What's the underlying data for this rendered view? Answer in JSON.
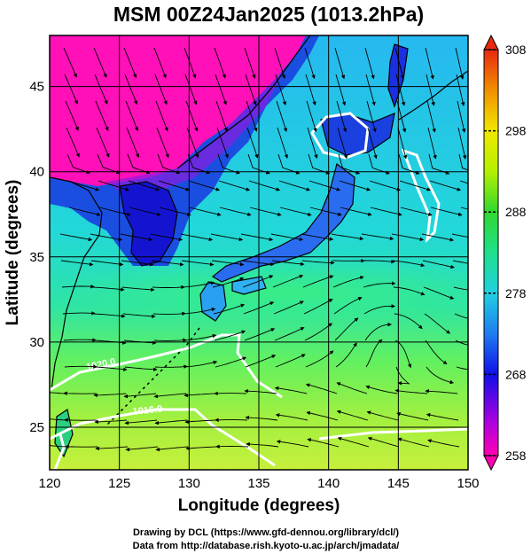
{
  "title": "MSM 00Z24Jan2025 (1013.2hPa)",
  "xlabel": "Longitude (degrees)",
  "ylabel": "Latitude  (degrees)",
  "x_ticks": [
    "120",
    "125",
    "130",
    "135",
    "140",
    "145",
    "150"
  ],
  "y_ticks": [
    "25",
    "30",
    "35",
    "40",
    "45"
  ],
  "colorbar": {
    "labels": [
      "308",
      "298",
      "288",
      "278",
      "268",
      "258"
    ],
    "min": 258,
    "max": 308
  },
  "contour_labels": [
    "1020.0",
    "1016.0"
  ],
  "credits": {
    "line1": "Drawing by DCL (https://www.gfd-dennou.org/library/dcl/)",
    "line2": "Data from http://database.rish.kyoto-u.ac.jp/arch/jmadata/"
  },
  "chart_data": {
    "type": "heatmap",
    "title": "MSM 00Z24Jan2025 (1013.2hPa)",
    "xlabel": "Longitude (degrees)",
    "ylabel": "Latitude  (degrees)",
    "xlim": [
      120,
      150
    ],
    "ylim": [
      22.5,
      48
    ],
    "x_ticks": [
      120,
      125,
      130,
      135,
      140,
      145,
      150
    ],
    "y_ticks": [
      25,
      30,
      35,
      40,
      45
    ],
    "colorbar_range": [
      258,
      308
    ],
    "colorbar_ticks": [
      258,
      268,
      278,
      288,
      298,
      308
    ],
    "grid": true,
    "legend_position": "right"
  }
}
